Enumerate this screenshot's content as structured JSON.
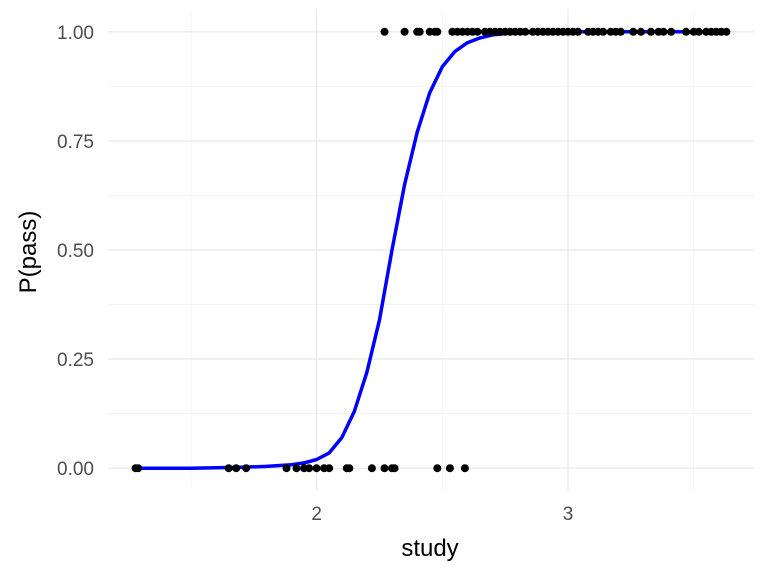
{
  "chart_data": {
    "type": "scatter",
    "title": "",
    "xlabel": "study",
    "ylabel": "P(pass)",
    "xlim": [
      1.17,
      3.74
    ],
    "ylim": [
      -0.05,
      1.05
    ],
    "x_ticks": [
      2,
      3
    ],
    "x_tick_labels": [
      "2",
      "3"
    ],
    "y_ticks": [
      0,
      0.25,
      0.5,
      0.75,
      1.0
    ],
    "y_tick_labels": [
      "0.00",
      "0.25",
      "0.50",
      "0.75",
      "1.00"
    ],
    "grid": true,
    "legend": "none",
    "colors": {
      "points": "#000000",
      "curve": "#0000ff"
    },
    "points": [
      {
        "x": 1.28,
        "y": 0
      },
      {
        "x": 1.29,
        "y": 0
      },
      {
        "x": 1.65,
        "y": 0
      },
      {
        "x": 1.68,
        "y": 0
      },
      {
        "x": 1.72,
        "y": 0
      },
      {
        "x": 1.88,
        "y": 0
      },
      {
        "x": 1.92,
        "y": 0
      },
      {
        "x": 1.95,
        "y": 0
      },
      {
        "x": 1.97,
        "y": 0
      },
      {
        "x": 2.0,
        "y": 0
      },
      {
        "x": 2.03,
        "y": 0
      },
      {
        "x": 2.05,
        "y": 0
      },
      {
        "x": 2.12,
        "y": 0
      },
      {
        "x": 2.13,
        "y": 0
      },
      {
        "x": 2.22,
        "y": 0
      },
      {
        "x": 2.27,
        "y": 0
      },
      {
        "x": 2.3,
        "y": 0
      },
      {
        "x": 2.31,
        "y": 0
      },
      {
        "x": 2.48,
        "y": 0
      },
      {
        "x": 2.53,
        "y": 0
      },
      {
        "x": 2.59,
        "y": 0
      },
      {
        "x": 2.27,
        "y": 1
      },
      {
        "x": 2.35,
        "y": 1
      },
      {
        "x": 2.4,
        "y": 1
      },
      {
        "x": 2.41,
        "y": 1
      },
      {
        "x": 2.45,
        "y": 1
      },
      {
        "x": 2.47,
        "y": 1
      },
      {
        "x": 2.48,
        "y": 1
      },
      {
        "x": 2.54,
        "y": 1
      },
      {
        "x": 2.56,
        "y": 1
      },
      {
        "x": 2.58,
        "y": 1
      },
      {
        "x": 2.6,
        "y": 1
      },
      {
        "x": 2.62,
        "y": 1
      },
      {
        "x": 2.64,
        "y": 1
      },
      {
        "x": 2.67,
        "y": 1
      },
      {
        "x": 2.69,
        "y": 1
      },
      {
        "x": 2.71,
        "y": 1
      },
      {
        "x": 2.73,
        "y": 1
      },
      {
        "x": 2.75,
        "y": 1
      },
      {
        "x": 2.77,
        "y": 1
      },
      {
        "x": 2.79,
        "y": 1
      },
      {
        "x": 2.81,
        "y": 1
      },
      {
        "x": 2.83,
        "y": 1
      },
      {
        "x": 2.86,
        "y": 1
      },
      {
        "x": 2.88,
        "y": 1
      },
      {
        "x": 2.9,
        "y": 1
      },
      {
        "x": 2.92,
        "y": 1
      },
      {
        "x": 2.94,
        "y": 1
      },
      {
        "x": 2.96,
        "y": 1
      },
      {
        "x": 2.98,
        "y": 1
      },
      {
        "x": 3.0,
        "y": 1
      },
      {
        "x": 3.02,
        "y": 1
      },
      {
        "x": 3.04,
        "y": 1
      },
      {
        "x": 3.08,
        "y": 1
      },
      {
        "x": 3.1,
        "y": 1
      },
      {
        "x": 3.12,
        "y": 1
      },
      {
        "x": 3.14,
        "y": 1
      },
      {
        "x": 3.17,
        "y": 1
      },
      {
        "x": 3.19,
        "y": 1
      },
      {
        "x": 3.21,
        "y": 1
      },
      {
        "x": 3.26,
        "y": 1
      },
      {
        "x": 3.29,
        "y": 1
      },
      {
        "x": 3.33,
        "y": 1
      },
      {
        "x": 3.36,
        "y": 1
      },
      {
        "x": 3.38,
        "y": 1
      },
      {
        "x": 3.41,
        "y": 1
      },
      {
        "x": 3.47,
        "y": 1
      },
      {
        "x": 3.5,
        "y": 1
      },
      {
        "x": 3.52,
        "y": 1
      },
      {
        "x": 3.55,
        "y": 1
      },
      {
        "x": 3.57,
        "y": 1
      },
      {
        "x": 3.59,
        "y": 1
      },
      {
        "x": 3.61,
        "y": 1
      },
      {
        "x": 3.63,
        "y": 1
      }
    ],
    "curve": {
      "x": [
        1.29,
        1.4,
        1.5,
        1.6,
        1.7,
        1.8,
        1.9,
        1.95,
        2.0,
        2.05,
        2.1,
        2.15,
        2.2,
        2.25,
        2.3,
        2.35,
        2.4,
        2.45,
        2.5,
        2.55,
        2.6,
        2.65,
        2.7,
        2.75,
        2.8,
        2.9,
        3.0,
        3.2,
        3.4,
        3.63
      ],
      "y": [
        0.0,
        0.0,
        0.0,
        0.001,
        0.002,
        0.004,
        0.008,
        0.012,
        0.02,
        0.035,
        0.07,
        0.13,
        0.22,
        0.34,
        0.5,
        0.65,
        0.77,
        0.86,
        0.92,
        0.955,
        0.975,
        0.986,
        0.993,
        0.996,
        0.998,
        0.999,
        1.0,
        1.0,
        1.0,
        1.0
      ]
    }
  }
}
